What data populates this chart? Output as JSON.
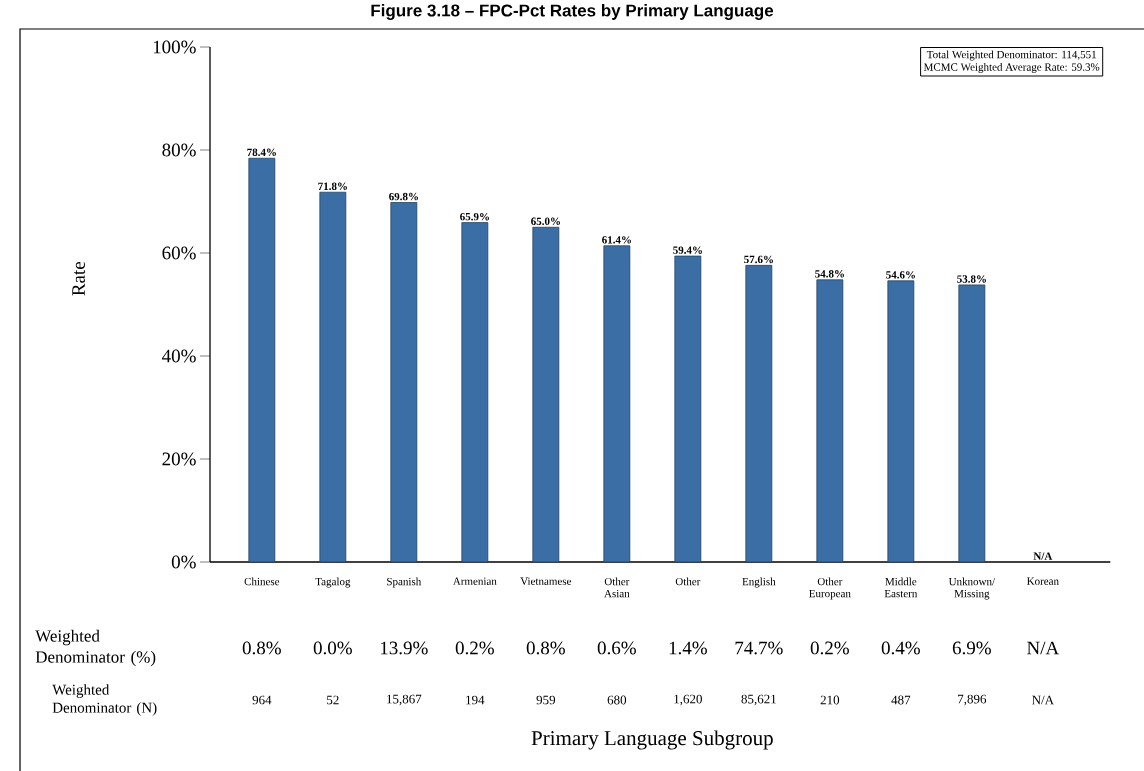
{
  "chart_data": {
    "type": "bar",
    "title": "Figure 3.18 – FPC-Pct Rates by Primary Language",
    "ylabel": "Rate",
    "categories": [
      "Chinese",
      "Tagalog",
      "Spanish",
      "Armenian",
      "Vietnamese",
      "Other Asian",
      "Other",
      "English",
      "Other European",
      "Middle Eastern",
      "Unknown/ Missing",
      "Korean"
    ],
    "values": [
      78.4,
      71.8,
      69.8,
      65.9,
      65.0,
      61.4,
      59.4,
      57.6,
      54.8,
      54.6,
      53.8,
      null
    ],
    "value_labels": [
      "78.4%",
      "71.8%",
      "69.8%",
      "65.9%",
      "65.0%",
      "61.4%",
      "59.4%",
      "57.6%",
      "54.8%",
      "54.6%",
      "53.8%",
      "N/A"
    ],
    "color": "#3a6ea5",
    "ylim": [
      0,
      100
    ],
    "yticks": [
      {
        "value": 0,
        "label": "0%"
      },
      {
        "value": 20,
        "label": "20%"
      },
      {
        "value": 40,
        "label": "40%"
      },
      {
        "value": 60,
        "label": "60%"
      },
      {
        "value": 80,
        "label": "80%"
      },
      {
        "value": 100,
        "label": "100%"
      }
    ],
    "annotations": [
      "Total Weighted Denominator: 114,551",
      "MCMC Weighted Average Rate: 59.3%",
      "Weighted Denominator (%)",
      "0.8%",
      "0.0%",
      "13.9%",
      "0.2%",
      "0.8%",
      "0.6%",
      "1.4%",
      "74.7%",
      "0.2%",
      "0.4%",
      "6.9%",
      "N/A",
      "Weighted Denominator (N)",
      "964",
      "52",
      "15,867",
      "194",
      "959",
      "680",
      "1,620",
      "85,621",
      "210",
      "487",
      "7,896",
      "N/A",
      "Primary Language Subgroup"
    ],
    "grid": false
  }
}
